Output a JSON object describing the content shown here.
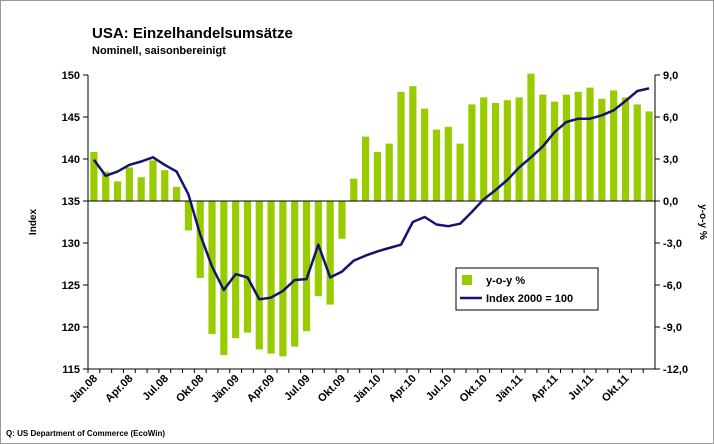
{
  "chart_data": {
    "type": "bar_line",
    "title": "USA: Einzelhandelsumsätze",
    "subtitle": "Nominell, saisonbereinigt",
    "y_label": "Index",
    "y2_label": "y-o-y %",
    "source": "Q: US Department of Commerce (EcoWin)",
    "categories": [
      "Jän.08",
      null,
      null,
      "Apr.08",
      null,
      null,
      "Jul.08",
      null,
      null,
      "Okt.08",
      null,
      null,
      "Jän.09",
      null,
      null,
      "Apr.09",
      null,
      null,
      "Jul.09",
      null,
      null,
      "Okt.09",
      null,
      null,
      "Jän.10",
      null,
      null,
      "Apr.10",
      null,
      null,
      "Jul.10",
      null,
      null,
      "Okt.10",
      null,
      null,
      "Jän.11",
      null,
      null,
      "Apr.11",
      null,
      null,
      "Jul.11",
      null,
      null,
      "Okt.11",
      null,
      null
    ],
    "series": [
      {
        "name": "y-o-y %",
        "color": "#99cc00",
        "axis": "y2",
        "kind": "bar",
        "values": [
          3.5,
          2.1,
          1.4,
          2.4,
          1.7,
          2.9,
          2.2,
          1.0,
          -2.1,
          -5.5,
          -9.5,
          -11.0,
          -9.8,
          -9.4,
          -10.6,
          -10.9,
          -11.1,
          -10.4,
          -9.3,
          -6.8,
          -7.4,
          -2.7,
          1.6,
          4.6,
          3.5,
          4.1,
          7.8,
          8.2,
          6.6,
          5.1,
          5.3,
          4.1,
          6.9,
          7.4,
          7.0,
          7.2,
          7.4,
          9.1,
          7.6,
          7.1,
          7.6,
          7.8,
          8.1,
          7.3,
          7.9,
          7.4,
          6.9,
          6.4
        ]
      },
      {
        "name": "Index 2000 = 100",
        "color": "#14146e",
        "axis": "y",
        "kind": "line",
        "values": [
          139.9,
          138.0,
          138.5,
          139.3,
          139.7,
          140.2,
          139.3,
          138.5,
          135.8,
          131.0,
          127.2,
          124.4,
          126.3,
          125.9,
          123.3,
          123.5,
          124.3,
          125.6,
          125.7,
          129.8,
          125.9,
          126.6,
          127.9,
          128.5,
          129.0,
          129.4,
          129.8,
          132.5,
          133.1,
          132.2,
          132.0,
          132.3,
          133.7,
          135.2,
          136.3,
          137.5,
          139.0,
          140.2,
          141.5,
          143.2,
          144.4,
          144.8,
          144.8,
          145.2,
          145.8,
          146.9,
          148.1,
          148.4
        ]
      }
    ],
    "ylim": [
      115,
      150
    ],
    "yticks": [
      115,
      120,
      125,
      130,
      135,
      140,
      145,
      150
    ],
    "y2lim": [
      -12,
      9
    ],
    "y2ticks": [
      {
        "value": -12,
        "label": "-12,0"
      },
      {
        "value": -9,
        "label": "-9,0"
      },
      {
        "value": -6,
        "label": "-6,0"
      },
      {
        "value": -3,
        "label": "-3,0"
      },
      {
        "value": 0,
        "label": "0,0"
      },
      {
        "value": 3,
        "label": "3,0"
      },
      {
        "value": 6,
        "label": "6,0"
      },
      {
        "value": 9,
        "label": "9,0"
      }
    ]
  }
}
